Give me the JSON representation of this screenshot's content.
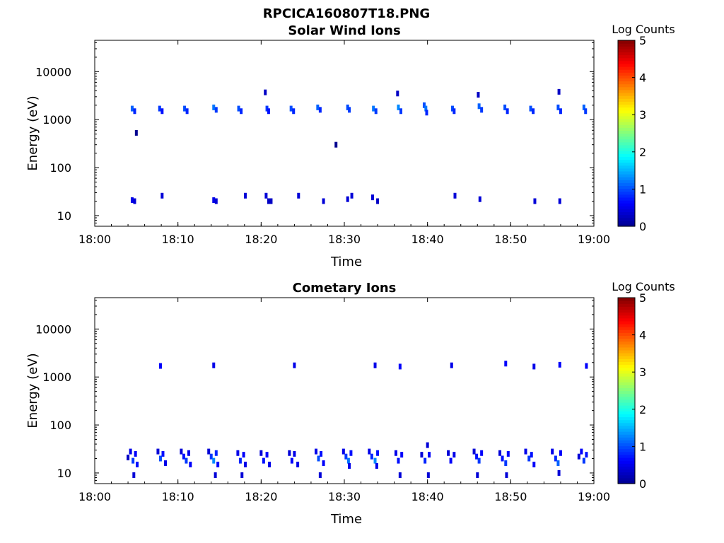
{
  "figure_title": "RPCICA160807T18.PNG",
  "colorscale": [
    "#00008f",
    "#0000ff",
    "#0080ff",
    "#00ffff",
    "#80ff80",
    "#ffff00",
    "#ff8000",
    "#ff0000",
    "#800000"
  ],
  "chart_data": [
    {
      "type": "heatmap",
      "title": "Solar Wind Ions",
      "xlabel": "Time",
      "ylabel": "Energy (eV)",
      "x_ticks": [
        "18:00",
        "18:10",
        "18:20",
        "18:30",
        "18:40",
        "18:50",
        "19:00"
      ],
      "x_range_minutes": [
        0,
        60
      ],
      "y_scale": "log",
      "y_ticks": [
        "10",
        "100",
        "1000",
        "10000"
      ],
      "y_range": [
        6,
        45000
      ],
      "colorbar": {
        "label": "Log Counts",
        "min": 0,
        "max": 5,
        "ticks": [
          "0",
          "1",
          "2",
          "3",
          "4",
          "5"
        ]
      },
      "cells": [
        {
          "t": 4.5,
          "e": 1700,
          "v": 1.1
        },
        {
          "t": 4.8,
          "e": 1500,
          "v": 0.8
        },
        {
          "t": 5.0,
          "e": 530,
          "v": 0.0
        },
        {
          "t": 7.8,
          "e": 1700,
          "v": 0.9
        },
        {
          "t": 8.1,
          "e": 1500,
          "v": 0.7
        },
        {
          "t": 10.8,
          "e": 1700,
          "v": 1.0
        },
        {
          "t": 11.1,
          "e": 1500,
          "v": 0.8
        },
        {
          "t": 14.3,
          "e": 1800,
          "v": 1.2
        },
        {
          "t": 14.6,
          "e": 1600,
          "v": 0.9
        },
        {
          "t": 17.3,
          "e": 1700,
          "v": 1.0
        },
        {
          "t": 17.6,
          "e": 1500,
          "v": 0.8
        },
        {
          "t": 20.5,
          "e": 3700,
          "v": 0.3
        },
        {
          "t": 20.7,
          "e": 1700,
          "v": 0.9
        },
        {
          "t": 20.9,
          "e": 1500,
          "v": 0.7
        },
        {
          "t": 23.6,
          "e": 1700,
          "v": 1.0
        },
        {
          "t": 23.9,
          "e": 1500,
          "v": 0.8
        },
        {
          "t": 26.8,
          "e": 1800,
          "v": 1.1
        },
        {
          "t": 27.1,
          "e": 1600,
          "v": 0.8
        },
        {
          "t": 29.0,
          "e": 300,
          "v": 0.0
        },
        {
          "t": 30.4,
          "e": 1800,
          "v": 1.0
        },
        {
          "t": 30.6,
          "e": 1600,
          "v": 0.9
        },
        {
          "t": 33.5,
          "e": 1700,
          "v": 1.2
        },
        {
          "t": 33.8,
          "e": 1500,
          "v": 0.9
        },
        {
          "t": 36.4,
          "e": 3500,
          "v": 0.3
        },
        {
          "t": 36.5,
          "e": 1800,
          "v": 1.3
        },
        {
          "t": 36.8,
          "e": 1500,
          "v": 0.9
        },
        {
          "t": 39.6,
          "e": 2000,
          "v": 1.0
        },
        {
          "t": 39.8,
          "e": 1700,
          "v": 1.2
        },
        {
          "t": 39.9,
          "e": 1400,
          "v": 0.8
        },
        {
          "t": 43.0,
          "e": 1700,
          "v": 1.0
        },
        {
          "t": 43.2,
          "e": 1500,
          "v": 0.8
        },
        {
          "t": 46.1,
          "e": 3300,
          "v": 0.3
        },
        {
          "t": 46.2,
          "e": 1900,
          "v": 1.1
        },
        {
          "t": 46.5,
          "e": 1600,
          "v": 0.9
        },
        {
          "t": 49.3,
          "e": 1800,
          "v": 1.0
        },
        {
          "t": 49.6,
          "e": 1500,
          "v": 0.8
        },
        {
          "t": 52.4,
          "e": 1700,
          "v": 1.0
        },
        {
          "t": 52.7,
          "e": 1500,
          "v": 0.8
        },
        {
          "t": 55.8,
          "e": 3800,
          "v": 0.3
        },
        {
          "t": 55.7,
          "e": 1800,
          "v": 1.0
        },
        {
          "t": 56.0,
          "e": 1500,
          "v": 0.8
        },
        {
          "t": 58.8,
          "e": 1800,
          "v": 1.1
        },
        {
          "t": 59.0,
          "e": 1500,
          "v": 0.9
        },
        {
          "t": 4.5,
          "e": 21,
          "v": 0.5
        },
        {
          "t": 4.8,
          "e": 20,
          "v": 0.4
        },
        {
          "t": 8.1,
          "e": 26,
          "v": 0.4
        },
        {
          "t": 14.3,
          "e": 21,
          "v": 0.5
        },
        {
          "t": 14.6,
          "e": 20,
          "v": 0.4
        },
        {
          "t": 18.1,
          "e": 26,
          "v": 0.4
        },
        {
          "t": 20.6,
          "e": 26,
          "v": 0.4
        },
        {
          "t": 20.9,
          "e": 20,
          "v": 0.3
        },
        {
          "t": 21.2,
          "e": 20,
          "v": 0.3
        },
        {
          "t": 24.5,
          "e": 26,
          "v": 0.4
        },
        {
          "t": 27.5,
          "e": 20,
          "v": 0.4
        },
        {
          "t": 30.4,
          "e": 22,
          "v": 0.4
        },
        {
          "t": 30.9,
          "e": 26,
          "v": 0.4
        },
        {
          "t": 33.4,
          "e": 24,
          "v": 0.4
        },
        {
          "t": 34.0,
          "e": 20,
          "v": 0.3
        },
        {
          "t": 43.3,
          "e": 26,
          "v": 0.4
        },
        {
          "t": 46.3,
          "e": 22,
          "v": 0.4
        },
        {
          "t": 52.9,
          "e": 20,
          "v": 0.4
        },
        {
          "t": 55.9,
          "e": 20,
          "v": 0.4
        }
      ]
    },
    {
      "type": "heatmap",
      "title": "Cometary Ions",
      "xlabel": "Time",
      "ylabel": "Energy (eV)",
      "x_ticks": [
        "18:00",
        "18:10",
        "18:20",
        "18:30",
        "18:40",
        "18:50",
        "19:00"
      ],
      "x_range_minutes": [
        0,
        60
      ],
      "y_scale": "log",
      "y_ticks": [
        "10",
        "100",
        "1000",
        "10000"
      ],
      "y_range": [
        6,
        45000
      ],
      "colorbar": {
        "label": "Log Counts",
        "min": 0,
        "max": 5,
        "ticks": [
          "0",
          "1",
          "2",
          "3",
          "4",
          "5"
        ]
      },
      "cells": [
        {
          "t": 7.9,
          "e": 1700,
          "v": 0.6
        },
        {
          "t": 14.3,
          "e": 1750,
          "v": 0.5
        },
        {
          "t": 24.0,
          "e": 1750,
          "v": 0.5
        },
        {
          "t": 33.7,
          "e": 1750,
          "v": 0.5
        },
        {
          "t": 36.7,
          "e": 1650,
          "v": 0.6
        },
        {
          "t": 42.9,
          "e": 1750,
          "v": 0.5
        },
        {
          "t": 49.4,
          "e": 1900,
          "v": 0.6
        },
        {
          "t": 52.8,
          "e": 1650,
          "v": 0.5
        },
        {
          "t": 55.9,
          "e": 1800,
          "v": 0.6
        },
        {
          "t": 59.1,
          "e": 1700,
          "v": 0.6
        },
        {
          "t": 4.0,
          "e": 21,
          "v": 0.3
        },
        {
          "t": 4.3,
          "e": 28,
          "v": 0.5
        },
        {
          "t": 4.6,
          "e": 18,
          "v": 0.9
        },
        {
          "t": 4.9,
          "e": 25,
          "v": 0.6
        },
        {
          "t": 5.1,
          "e": 15,
          "v": 0.7
        },
        {
          "t": 4.7,
          "e": 9,
          "v": 0.4
        },
        {
          "t": 7.6,
          "e": 28,
          "v": 0.4
        },
        {
          "t": 7.9,
          "e": 20,
          "v": 1.0
        },
        {
          "t": 8.2,
          "e": 25,
          "v": 0.7
        },
        {
          "t": 8.5,
          "e": 16,
          "v": 0.5
        },
        {
          "t": 10.4,
          "e": 28,
          "v": 0.4
        },
        {
          "t": 10.7,
          "e": 22,
          "v": 0.7
        },
        {
          "t": 11.0,
          "e": 18,
          "v": 0.9
        },
        {
          "t": 11.3,
          "e": 26,
          "v": 0.5
        },
        {
          "t": 11.5,
          "e": 15,
          "v": 0.6
        },
        {
          "t": 13.7,
          "e": 28,
          "v": 0.4
        },
        {
          "t": 14.0,
          "e": 22,
          "v": 0.9
        },
        {
          "t": 14.3,
          "e": 18,
          "v": 1.3
        },
        {
          "t": 14.6,
          "e": 26,
          "v": 0.8
        },
        {
          "t": 14.8,
          "e": 15,
          "v": 0.6
        },
        {
          "t": 14.5,
          "e": 9,
          "v": 0.4
        },
        {
          "t": 17.2,
          "e": 26,
          "v": 0.5
        },
        {
          "t": 17.5,
          "e": 18,
          "v": 0.8
        },
        {
          "t": 17.9,
          "e": 24,
          "v": 0.6
        },
        {
          "t": 18.1,
          "e": 15,
          "v": 0.5
        },
        {
          "t": 17.7,
          "e": 9,
          "v": 0.4
        },
        {
          "t": 20.0,
          "e": 26,
          "v": 0.4
        },
        {
          "t": 20.3,
          "e": 18,
          "v": 0.7
        },
        {
          "t": 20.7,
          "e": 24,
          "v": 0.6
        },
        {
          "t": 21.0,
          "e": 15,
          "v": 0.5
        },
        {
          "t": 23.4,
          "e": 26,
          "v": 0.4
        },
        {
          "t": 23.7,
          "e": 18,
          "v": 0.6
        },
        {
          "t": 24.0,
          "e": 25,
          "v": 0.5
        },
        {
          "t": 24.4,
          "e": 15,
          "v": 0.5
        },
        {
          "t": 26.6,
          "e": 28,
          "v": 0.5
        },
        {
          "t": 26.9,
          "e": 20,
          "v": 1.0
        },
        {
          "t": 27.2,
          "e": 25,
          "v": 0.7
        },
        {
          "t": 27.5,
          "e": 16,
          "v": 0.6
        },
        {
          "t": 27.1,
          "e": 9,
          "v": 0.4
        },
        {
          "t": 29.9,
          "e": 28,
          "v": 0.5
        },
        {
          "t": 30.2,
          "e": 22,
          "v": 0.9
        },
        {
          "t": 30.5,
          "e": 18,
          "v": 1.2
        },
        {
          "t": 30.8,
          "e": 26,
          "v": 0.7
        },
        {
          "t": 30.6,
          "e": 14,
          "v": 0.5
        },
        {
          "t": 33.0,
          "e": 28,
          "v": 0.5
        },
        {
          "t": 33.3,
          "e": 22,
          "v": 0.8
        },
        {
          "t": 33.7,
          "e": 18,
          "v": 1.3
        },
        {
          "t": 34.0,
          "e": 26,
          "v": 0.7
        },
        {
          "t": 33.9,
          "e": 14,
          "v": 0.5
        },
        {
          "t": 36.2,
          "e": 26,
          "v": 0.5
        },
        {
          "t": 36.5,
          "e": 18,
          "v": 0.7
        },
        {
          "t": 36.9,
          "e": 24,
          "v": 0.6
        },
        {
          "t": 36.7,
          "e": 9,
          "v": 0.4
        },
        {
          "t": 39.3,
          "e": 24,
          "v": 0.4
        },
        {
          "t": 39.7,
          "e": 18,
          "v": 0.8
        },
        {
          "t": 40.0,
          "e": 38,
          "v": 0.4
        },
        {
          "t": 40.2,
          "e": 24,
          "v": 0.6
        },
        {
          "t": 40.1,
          "e": 9,
          "v": 0.4
        },
        {
          "t": 42.5,
          "e": 26,
          "v": 0.4
        },
        {
          "t": 42.8,
          "e": 18,
          "v": 0.6
        },
        {
          "t": 43.2,
          "e": 24,
          "v": 0.5
        },
        {
          "t": 45.6,
          "e": 28,
          "v": 0.4
        },
        {
          "t": 45.9,
          "e": 22,
          "v": 0.7
        },
        {
          "t": 46.2,
          "e": 18,
          "v": 0.9
        },
        {
          "t": 46.5,
          "e": 26,
          "v": 0.6
        },
        {
          "t": 46.0,
          "e": 9,
          "v": 0.4
        },
        {
          "t": 48.7,
          "e": 26,
          "v": 0.4
        },
        {
          "t": 49.0,
          "e": 20,
          "v": 0.7
        },
        {
          "t": 49.4,
          "e": 16,
          "v": 0.9
        },
        {
          "t": 49.7,
          "e": 25,
          "v": 0.6
        },
        {
          "t": 49.5,
          "e": 9,
          "v": 0.4
        },
        {
          "t": 51.8,
          "e": 28,
          "v": 0.5
        },
        {
          "t": 52.2,
          "e": 20,
          "v": 0.9
        },
        {
          "t": 52.5,
          "e": 24,
          "v": 0.7
        },
        {
          "t": 52.8,
          "e": 15,
          "v": 0.6
        },
        {
          "t": 55.0,
          "e": 28,
          "v": 0.5
        },
        {
          "t": 55.4,
          "e": 20,
          "v": 0.8
        },
        {
          "t": 55.7,
          "e": 16,
          "v": 1.1
        },
        {
          "t": 56.0,
          "e": 26,
          "v": 0.6
        },
        {
          "t": 55.8,
          "e": 10,
          "v": 0.4
        },
        {
          "t": 58.2,
          "e": 22,
          "v": 0.4
        },
        {
          "t": 58.5,
          "e": 28,
          "v": 0.6
        },
        {
          "t": 58.8,
          "e": 18,
          "v": 0.9
        },
        {
          "t": 59.1,
          "e": 24,
          "v": 0.7
        }
      ]
    }
  ]
}
